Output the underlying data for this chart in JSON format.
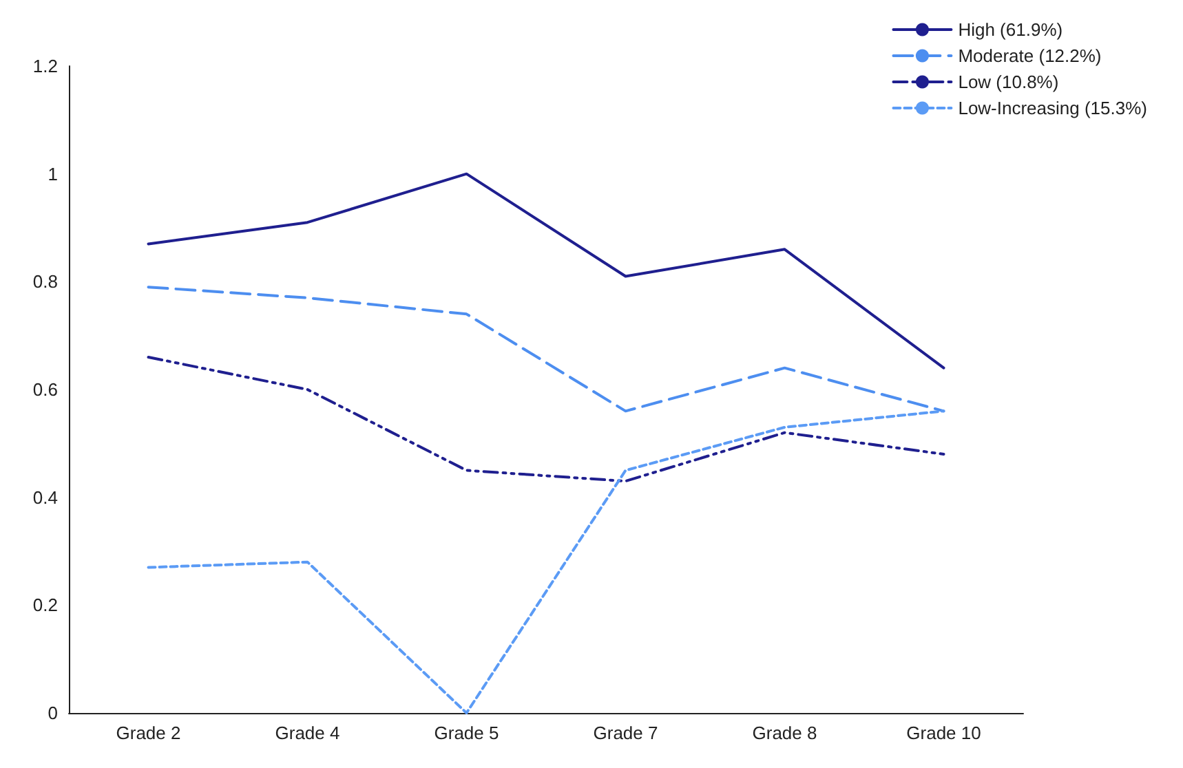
{
  "chart_data": {
    "type": "line",
    "categories": [
      "Grade 2",
      "Grade 4",
      "Grade 5",
      "Grade 7",
      "Grade 8",
      "Grade 10"
    ],
    "series": [
      {
        "name": "High (61.9%)",
        "color": "#1f1f8f",
        "line_style": "solid",
        "values": [
          0.87,
          0.91,
          1.0,
          0.81,
          0.86,
          0.64
        ]
      },
      {
        "name": "Moderate (12.2%)",
        "color": "#4d8ef0",
        "line_style": "dashed",
        "values": [
          0.79,
          0.77,
          0.74,
          0.56,
          0.64,
          0.56
        ]
      },
      {
        "name": "Low (10.8%)",
        "color": "#1f1f8f",
        "line_style": "dashdot",
        "values": [
          0.66,
          0.6,
          0.45,
          0.43,
          0.52,
          0.48
        ]
      },
      {
        "name": "Low-Increasing (15.3%)",
        "color": "#5b9bf5",
        "line_style": "dotted",
        "values": [
          0.27,
          0.28,
          0.0,
          0.45,
          0.53,
          0.56
        ]
      }
    ],
    "ylim": [
      0,
      1.2
    ],
    "yticks": [
      0,
      0.2,
      0.4,
      0.6,
      0.8,
      1,
      1.2
    ],
    "grid": false,
    "legend": "top right",
    "marker": "none"
  }
}
